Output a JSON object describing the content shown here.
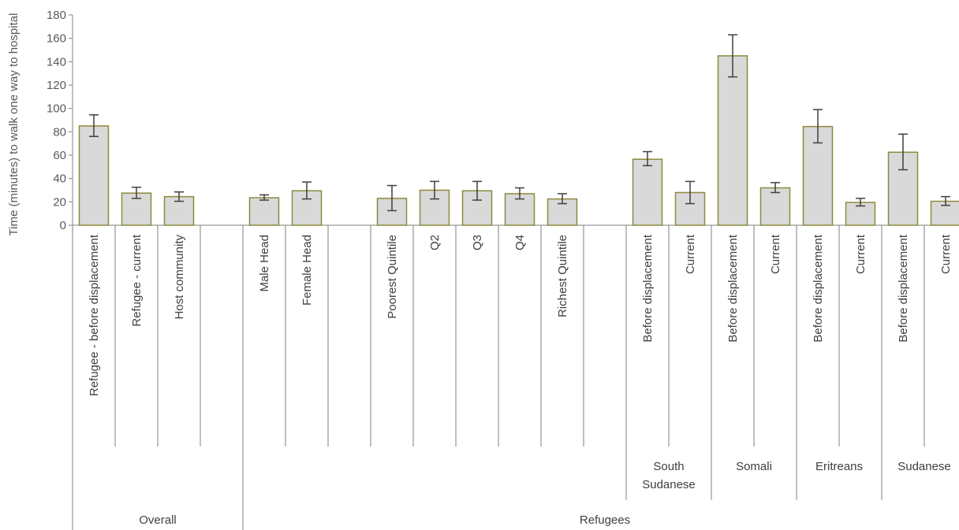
{
  "chart_data": {
    "type": "bar",
    "title": "",
    "ylabel": "Time (minutes) to walk one way to hospital",
    "ylim": [
      0,
      180
    ],
    "yticks": [
      0,
      20,
      40,
      60,
      80,
      100,
      120,
      140,
      160,
      180
    ],
    "grid": false,
    "colors": {
      "bar_fill": "#d9d9d9",
      "bar_stroke": "#8c8a3c",
      "error_bar": "#404040",
      "axis": "#808080"
    },
    "categories": [
      "Refugee - before displacement",
      "Refugee - current",
      "Host community",
      "",
      "Male Head",
      "Female Head",
      "",
      "Poorest Quintile",
      "Q2",
      "Q3",
      "Q4",
      "Richest Quintile",
      "",
      "Before displacement",
      "Current",
      "Before displacement",
      "Current",
      "Before displacement",
      "Current",
      "Before displacement",
      "Current"
    ],
    "values": [
      85,
      27.5,
      24.5,
      null,
      23.5,
      29.5,
      null,
      23,
      30,
      29.5,
      27,
      22.5,
      null,
      56.5,
      28,
      145,
      32,
      84.5,
      19.5,
      62.5,
      20.5
    ],
    "error_low": [
      76,
      23,
      20.5,
      null,
      21.5,
      22.5,
      null,
      12.5,
      22.5,
      21.5,
      22.5,
      18.5,
      null,
      51,
      18.5,
      127,
      28,
      70.5,
      16.5,
      47.5,
      17
    ],
    "error_high": [
      94.5,
      32.5,
      28.5,
      null,
      26,
      37,
      null,
      34,
      37.5,
      37.5,
      32,
      27,
      null,
      63,
      37.5,
      163,
      36.5,
      99,
      23,
      78,
      24.5
    ],
    "subgroups": [
      {
        "label": "South Sudanese",
        "start": 13,
        "end": 14
      },
      {
        "label": "Somali",
        "start": 15,
        "end": 16
      },
      {
        "label": "Eritreans",
        "start": 17,
        "end": 18
      },
      {
        "label": "Sudanese",
        "start": 19,
        "end": 20
      }
    ],
    "groups": [
      {
        "label": "Overall",
        "start": 0,
        "end": 3
      },
      {
        "label": "Refugees",
        "start": 4,
        "end": 20
      }
    ]
  }
}
